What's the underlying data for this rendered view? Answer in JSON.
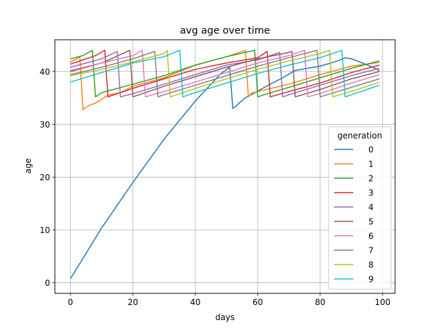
{
  "chart_data": {
    "type": "line",
    "title": "avg age over time",
    "xlabel": "days",
    "ylabel": "age",
    "xlim": [
      -5,
      104
    ],
    "ylim": [
      -2,
      46
    ],
    "xticks": [
      0,
      20,
      40,
      60,
      80,
      100
    ],
    "yticks": [
      0,
      10,
      20,
      30,
      40
    ],
    "grid": true,
    "legend": {
      "title": "generation",
      "location": "right"
    },
    "series": [
      {
        "name": "0",
        "color": "#1f77b4",
        "x": [
          0,
          10,
          20,
          30,
          40,
          48,
          51,
          52,
          53,
          54,
          55,
          56,
          60,
          64,
          68,
          72,
          76,
          80,
          84,
          86,
          88,
          90,
          94,
          98,
          99
        ],
        "y": [
          0.8,
          10.4,
          19.0,
          27.2,
          34.4,
          39.5,
          40.8,
          33.0,
          33.4,
          34.0,
          34.5,
          35.0,
          36.3,
          37.6,
          38.8,
          40.2,
          40.6,
          41.0,
          41.7,
          42.1,
          42.6,
          42.4,
          41.5,
          40.5,
          40.1
        ]
      },
      {
        "name": "1",
        "color": "#ff7f0e",
        "x": [
          0,
          2,
          3,
          4,
          6,
          8,
          12,
          16,
          20,
          30,
          40,
          50,
          56,
          57,
          58,
          60,
          70,
          80,
          90,
          99
        ],
        "y": [
          41.8,
          42.4,
          42.8,
          32.8,
          33.6,
          34.0,
          35.5,
          36.0,
          37.2,
          38.8,
          41.2,
          42.8,
          44.0,
          35.2,
          35.9,
          36.2,
          37.6,
          39.4,
          41.0,
          41.7
        ]
      },
      {
        "name": "2",
        "color": "#2ca02c",
        "x": [
          0,
          4,
          7,
          8,
          10,
          20,
          30,
          40,
          50,
          59,
          60,
          62,
          70,
          80,
          90,
          99
        ],
        "y": [
          42.4,
          43.0,
          44.0,
          35.2,
          36.0,
          37.6,
          39.2,
          41.2,
          42.8,
          44.0,
          35.2,
          35.6,
          37.0,
          38.8,
          40.6,
          42.0
        ]
      },
      {
        "name": "3",
        "color": "#d62728",
        "x": [
          0,
          8,
          11,
          12,
          20,
          30,
          40,
          50,
          60,
          63,
          64,
          70,
          80,
          90,
          99
        ],
        "y": [
          41.4,
          43.0,
          44.0,
          35.2,
          36.8,
          38.6,
          40.4,
          41.6,
          42.6,
          43.8,
          35.2,
          36.2,
          37.8,
          39.8,
          41.2
        ]
      },
      {
        "name": "4",
        "color": "#9467bd",
        "x": [
          0,
          10,
          15,
          16,
          20,
          30,
          40,
          50,
          60,
          67,
          68,
          70,
          80,
          90,
          99
        ],
        "y": [
          40.8,
          42.4,
          43.8,
          35.2,
          35.8,
          37.6,
          39.4,
          41.2,
          42.2,
          43.6,
          35.2,
          35.6,
          37.4,
          39.2,
          40.6
        ]
      },
      {
        "name": "5",
        "color": "#8c564b",
        "x": [
          0,
          10,
          19,
          20,
          30,
          40,
          50,
          60,
          70,
          71,
          72,
          80,
          90,
          99
        ],
        "y": [
          40.0,
          41.6,
          44.0,
          35.2,
          37.2,
          39.0,
          40.8,
          42.4,
          43.6,
          43.8,
          35.2,
          36.6,
          38.6,
          40.0
        ]
      },
      {
        "name": "6",
        "color": "#e377c2",
        "x": [
          0,
          10,
          20,
          23,
          24,
          30,
          40,
          50,
          60,
          70,
          75,
          76,
          80,
          90,
          99
        ],
        "y": [
          40.2,
          41.6,
          43.0,
          44.0,
          35.2,
          36.2,
          38.0,
          39.8,
          41.6,
          43.0,
          44.0,
          35.2,
          35.8,
          37.8,
          39.4
        ]
      },
      {
        "name": "7",
        "color": "#7f7f7f",
        "x": [
          0,
          10,
          20,
          27,
          28,
          30,
          40,
          50,
          60,
          70,
          79,
          80,
          90,
          99
        ],
        "y": [
          39.4,
          40.8,
          42.4,
          43.8,
          35.2,
          35.6,
          37.4,
          39.2,
          41.0,
          42.6,
          44.0,
          35.2,
          37.0,
          38.6
        ]
      },
      {
        "name": "8",
        "color": "#bcbd22",
        "x": [
          0,
          10,
          20,
          30,
          31,
          32,
          40,
          50,
          60,
          70,
          80,
          83,
          84,
          90,
          99
        ],
        "y": [
          39.2,
          40.4,
          41.8,
          43.4,
          44.0,
          35.2,
          36.8,
          38.6,
          40.4,
          42.0,
          43.4,
          44.0,
          35.2,
          36.2,
          38.0
        ]
      },
      {
        "name": "9",
        "color": "#17becf",
        "x": [
          0,
          10,
          20,
          30,
          35,
          36,
          40,
          50,
          60,
          70,
          80,
          87,
          88,
          90,
          99
        ],
        "y": [
          38.0,
          39.8,
          41.6,
          42.8,
          44.0,
          35.2,
          36.0,
          37.8,
          39.6,
          41.2,
          42.6,
          44.0,
          35.2,
          35.6,
          37.4
        ]
      }
    ]
  }
}
